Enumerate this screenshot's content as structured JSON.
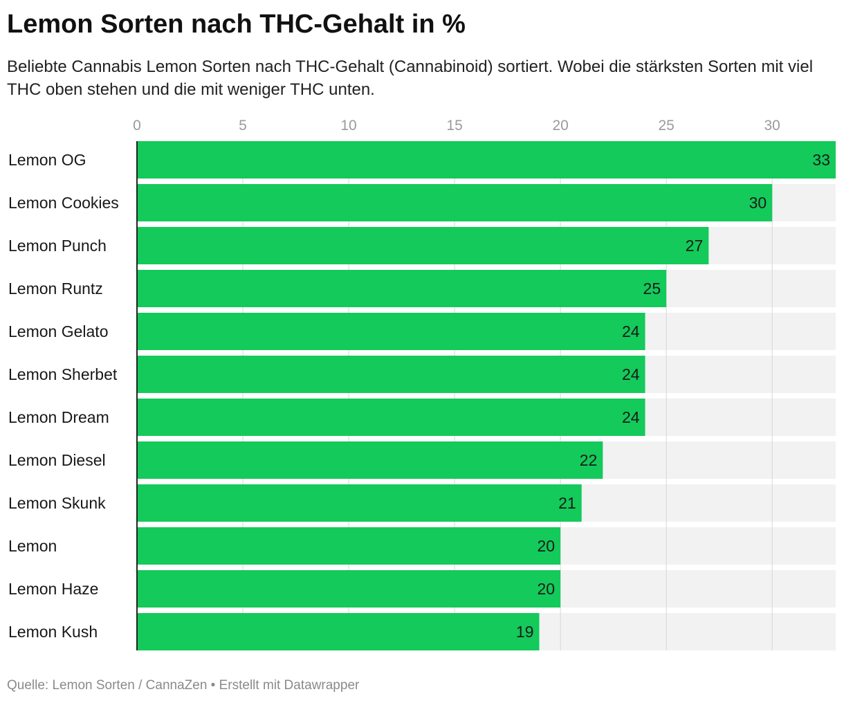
{
  "title": "Lemon Sorten nach THC-Gehalt in %",
  "subtitle": "Beliebte Cannabis Lemon Sorten nach THC-Gehalt (Cannabinoid) sortiert. Wobei die stärksten Sorten mit viel THC oben stehen und die mit weniger THC unten.",
  "footer": "Quelle: Lemon Sorten / CannaZen • Erstellt mit Datawrapper",
  "colors": {
    "bar": "#13ca5a",
    "track": "#f2f2f2",
    "grid": "#d6d6d6",
    "tick": "#9a9a9a",
    "baseline": "#222222"
  },
  "chart_data": {
    "type": "bar",
    "orientation": "horizontal",
    "categories": [
      "Lemon OG",
      "Lemon Cookies",
      "Lemon Punch",
      "Lemon Runtz",
      "Lemon Gelato",
      "Lemon Sherbet",
      "Lemon Dream",
      "Lemon Diesel",
      "Lemon Skunk",
      "Lemon",
      "Lemon Haze",
      "Lemon Kush"
    ],
    "values": [
      33,
      30,
      27,
      25,
      24,
      24,
      24,
      22,
      21,
      20,
      20,
      19
    ],
    "xticks": [
      0,
      5,
      10,
      15,
      20,
      25,
      30
    ],
    "xlim": [
      0,
      33
    ],
    "grid": true,
    "data_labels": true
  }
}
